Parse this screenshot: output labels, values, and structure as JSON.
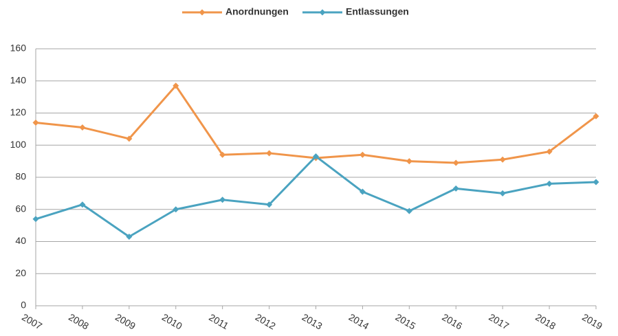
{
  "chart_data": {
    "type": "line",
    "categories": [
      "2007",
      "2008",
      "2009",
      "2010",
      "2011",
      "2012",
      "2013",
      "2014",
      "2015",
      "2016",
      "2017",
      "2018",
      "2019"
    ],
    "series": [
      {
        "name": "Anordnungen",
        "color": "#f0954a",
        "values": [
          114,
          111,
          104,
          137,
          94,
          95,
          92,
          94,
          90,
          89,
          91,
          96,
          118
        ]
      },
      {
        "name": "Entlassungen",
        "color": "#4aa3c0",
        "values": [
          54,
          63,
          43,
          60,
          66,
          63,
          93,
          71,
          59,
          73,
          70,
          76,
          77
        ]
      }
    ],
    "ylim": [
      0,
      160
    ],
    "yticks": [
      0,
      20,
      40,
      60,
      80,
      100,
      120,
      140,
      160
    ],
    "grid": true,
    "legend": "top"
  }
}
